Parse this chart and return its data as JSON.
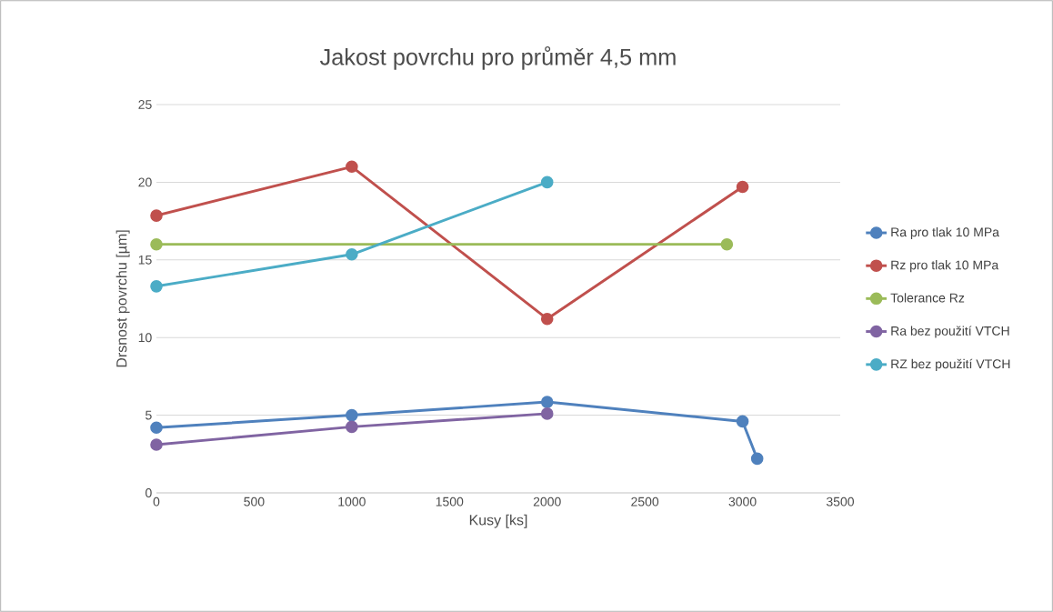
{
  "chart_data": {
    "type": "line",
    "title": "Jakost povrchu pro průměr 4,5 mm",
    "xlabel": "Kusy [ks]",
    "ylabel": "Drsnost povrchu [µm]",
    "xlim": [
      0,
      3500
    ],
    "xticks": [
      0,
      500,
      1000,
      1500,
      2000,
      2500,
      3000,
      3500
    ],
    "ylim": [
      0,
      25
    ],
    "yticks": [
      0,
      5,
      10,
      15,
      20,
      25
    ],
    "grid": "y",
    "legend": "right",
    "marker": "circle",
    "line_style": "solid",
    "series": [
      {
        "name": "Ra pro tlak 10 MPa",
        "color": "#4f81bd",
        "x": [
          0,
          1000,
          2000,
          3000,
          3075
        ],
        "values": [
          4.2,
          5.0,
          5.85,
          4.6,
          2.2
        ]
      },
      {
        "name": "Rz pro tlak 10 MPa",
        "color": "#c0504d",
        "x": [
          0,
          1000,
          2000,
          3000
        ],
        "values": [
          17.85,
          21.0,
          11.2,
          19.7
        ]
      },
      {
        "name": "Tolerance Rz",
        "color": "#9bbb59",
        "x": [
          0,
          2920
        ],
        "values": [
          16,
          16
        ]
      },
      {
        "name": "Ra bez použití VTCH",
        "color": "#8064a2",
        "x": [
          0,
          1000,
          2000
        ],
        "values": [
          3.1,
          4.25,
          5.1
        ]
      },
      {
        "name": "RZ bez použití VTCH",
        "color": "#4bacc6",
        "x": [
          0,
          1000,
          2000
        ],
        "values": [
          13.3,
          15.35,
          20.0
        ]
      }
    ]
  }
}
